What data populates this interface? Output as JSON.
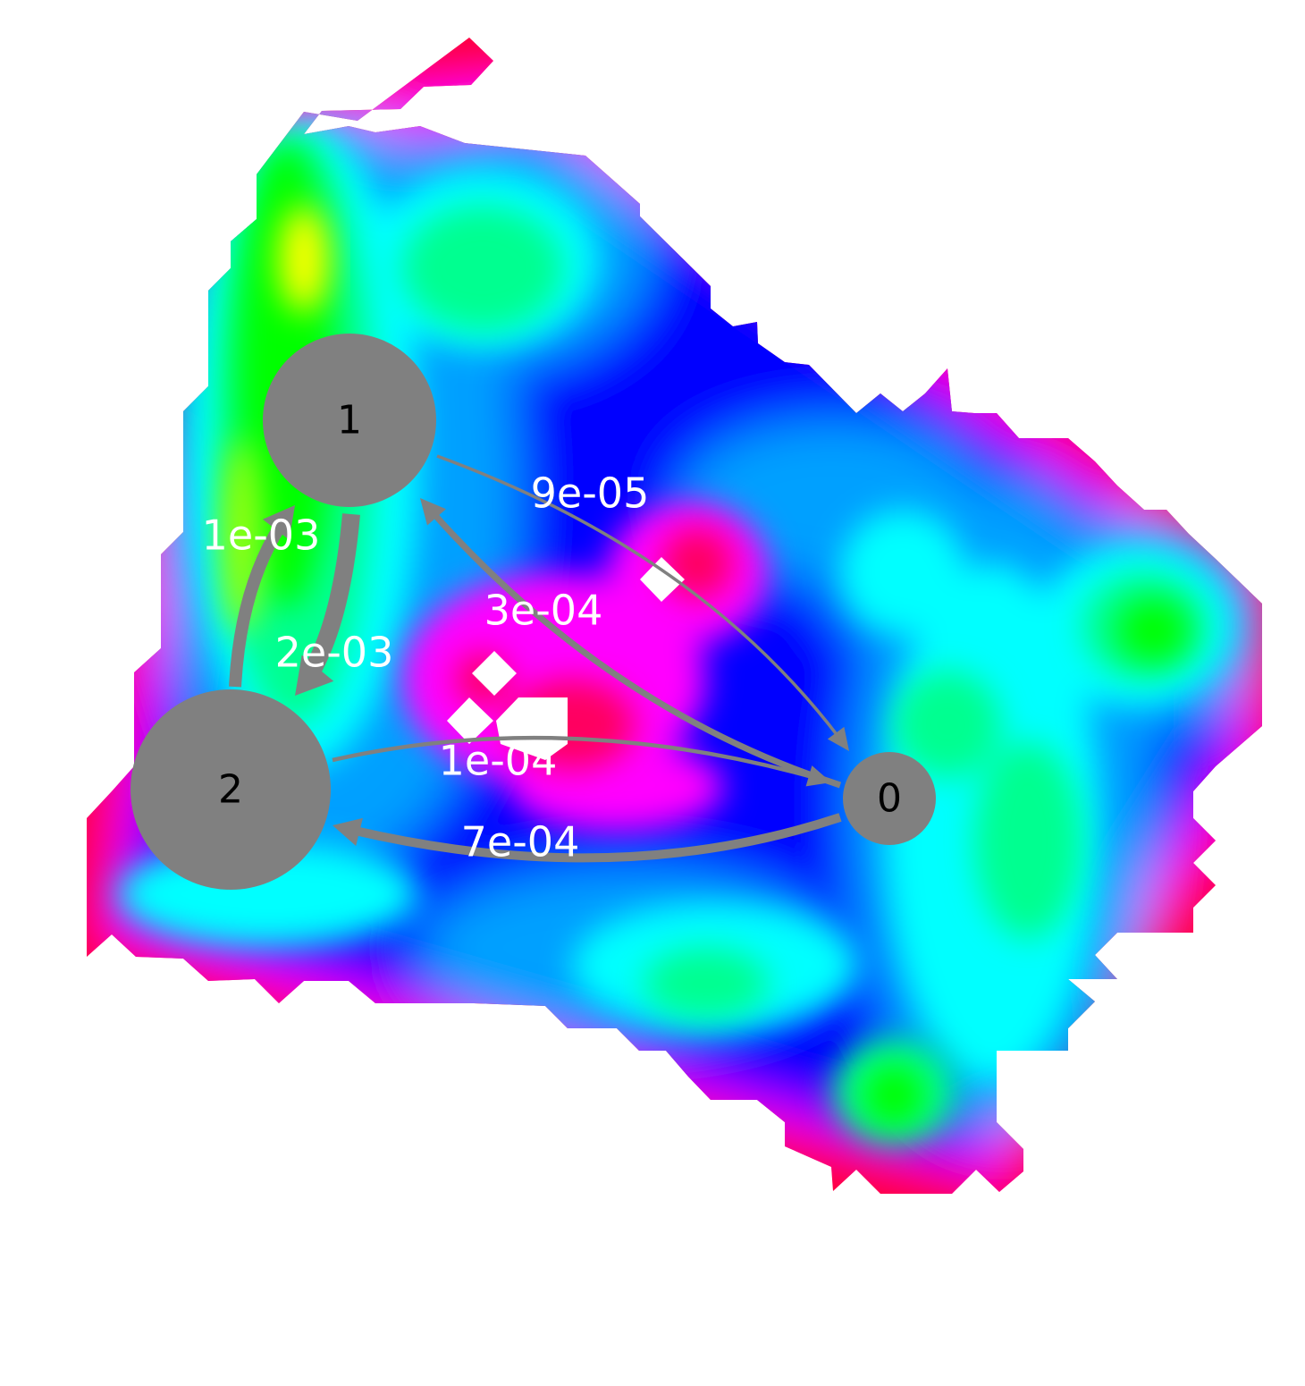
{
  "colors": {
    "node_fill": "#808080",
    "edge_color": "#808080",
    "edge_label_color": "#ffffff",
    "node_label_color": "#000000",
    "landscape_colormap": [
      "#ff0030",
      "#ff00ff",
      "#0000ff",
      "#00a0ff",
      "#00ffff",
      "#00ff90",
      "#00ff00",
      "#ffff00"
    ]
  },
  "nodes": [
    {
      "id": "0",
      "label": "0"
    },
    {
      "id": "1",
      "label": "1"
    },
    {
      "id": "2",
      "label": "2"
    }
  ],
  "edges": [
    {
      "from": "1",
      "to": "0",
      "label": "9e-05"
    },
    {
      "from": "0",
      "to": "1",
      "label": "3e-04"
    },
    {
      "from": "2",
      "to": "1",
      "label": "1e-03"
    },
    {
      "from": "1",
      "to": "2",
      "label": "2e-03"
    },
    {
      "from": "2",
      "to": "0",
      "label": "1e-04"
    },
    {
      "from": "0",
      "to": "2",
      "label": "7e-04"
    }
  ]
}
